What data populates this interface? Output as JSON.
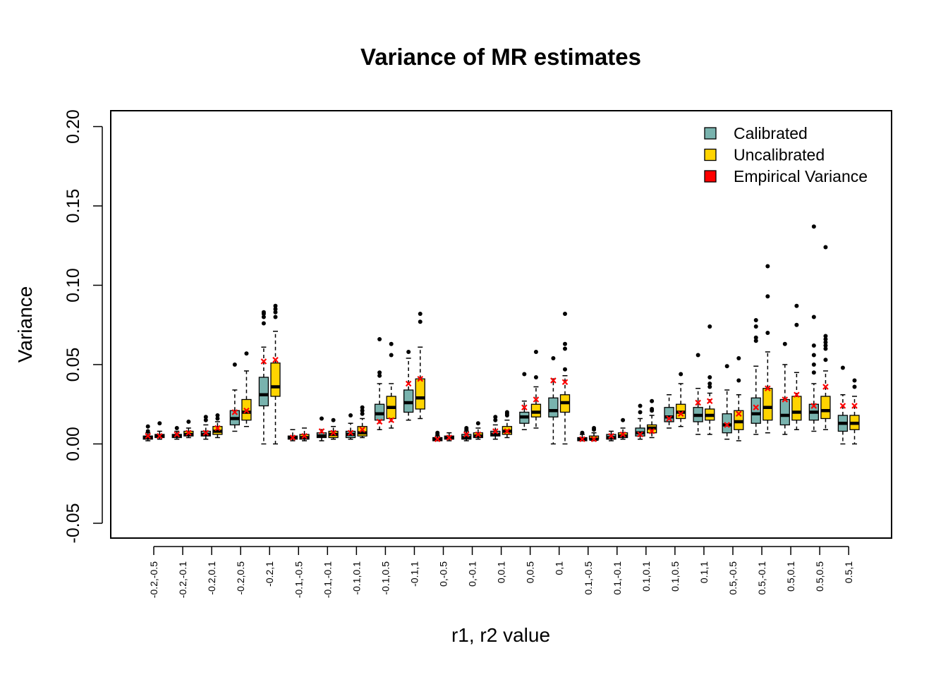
{
  "chart_data": {
    "type": "box",
    "title": "Variance of MR estimates",
    "xlabel": "r1, r2 value",
    "ylabel": "Variance",
    "ylim": [
      -0.06,
      0.21
    ],
    "yticks": [
      -0.05,
      0.0,
      0.05,
      0.1,
      0.15,
      0.2
    ],
    "ytick_labels": [
      "-0.05",
      "0.00",
      "0.05",
      "0.10",
      "0.15",
      "0.20"
    ],
    "grid": false,
    "legend_position": "top-right",
    "legend": [
      {
        "label": "Calibrated",
        "color": "#79B3AE"
      },
      {
        "label": "Uncalibrated",
        "color": "#FFD400"
      },
      {
        "label": "Empirical Variance",
        "color": "#FF0000"
      }
    ],
    "series_colors": {
      "calibrated": "#79B3AE",
      "uncalibrated": "#FFD400",
      "empirical": "#FF0000"
    },
    "categories": [
      {
        "label": "-0.2,-0.5",
        "calibrated": {
          "whislo": 0.002,
          "q1": 0.003,
          "med": 0.004,
          "q3": 0.005,
          "whishi": 0.007,
          "outliers": [
            0.008,
            0.011
          ]
        },
        "uncalibrated": {
          "whislo": 0.003,
          "q1": 0.004,
          "med": 0.005,
          "q3": 0.006,
          "whishi": 0.008,
          "outliers": [
            0.013
          ]
        },
        "empirical": [
          0.005,
          0.005
        ]
      },
      {
        "label": "-0.2,-0.1",
        "calibrated": {
          "whislo": 0.003,
          "q1": 0.004,
          "med": 0.005,
          "q3": 0.006,
          "whishi": 0.008,
          "outliers": [
            0.01
          ]
        },
        "uncalibrated": {
          "whislo": 0.004,
          "q1": 0.005,
          "med": 0.006,
          "q3": 0.008,
          "whishi": 0.01,
          "outliers": [
            0.014
          ]
        },
        "empirical": [
          0.006,
          0.007
        ]
      },
      {
        "label": "-0.2,0.1",
        "calibrated": {
          "whislo": 0.003,
          "q1": 0.005,
          "med": 0.006,
          "q3": 0.008,
          "whishi": 0.012,
          "outliers": [
            0.015,
            0.017
          ]
        },
        "uncalibrated": {
          "whislo": 0.004,
          "q1": 0.006,
          "med": 0.008,
          "q3": 0.011,
          "whishi": 0.014,
          "outliers": [
            0.016,
            0.018
          ]
        },
        "empirical": [
          0.007,
          0.01
        ]
      },
      {
        "label": "-0.2,0.5",
        "calibrated": {
          "whislo": 0.008,
          "q1": 0.012,
          "med": 0.016,
          "q3": 0.021,
          "whishi": 0.034,
          "outliers": [
            0.05
          ]
        },
        "uncalibrated": {
          "whislo": 0.011,
          "q1": 0.015,
          "med": 0.02,
          "q3": 0.028,
          "whishi": 0.046,
          "outliers": [
            0.057
          ]
        },
        "empirical": [
          0.02,
          0.021
        ]
      },
      {
        "label": "-0.2,1",
        "calibrated": {
          "whislo": 0.0,
          "q1": 0.024,
          "med": 0.031,
          "q3": 0.042,
          "whishi": 0.061,
          "outliers": [
            0.076,
            0.08,
            0.082,
            0.083
          ]
        },
        "uncalibrated": {
          "whislo": 0.0,
          "q1": 0.03,
          "med": 0.036,
          "q3": 0.051,
          "whishi": 0.071,
          "outliers": [
            0.08,
            0.083,
            0.085,
            0.087
          ]
        },
        "empirical": [
          0.052,
          0.053
        ]
      },
      {
        "label": "-0.1,-0.5",
        "calibrated": {
          "whislo": 0.002,
          "q1": 0.003,
          "med": 0.004,
          "q3": 0.005,
          "whishi": 0.009,
          "outliers": []
        },
        "uncalibrated": {
          "whislo": 0.002,
          "q1": 0.003,
          "med": 0.004,
          "q3": 0.006,
          "whishi": 0.01,
          "outliers": []
        },
        "empirical": [
          0.004,
          0.005
        ]
      },
      {
        "label": "-0.1,-0.1",
        "calibrated": {
          "whislo": 0.002,
          "q1": 0.004,
          "med": 0.005,
          "q3": 0.007,
          "whishi": 0.009,
          "outliers": [
            0.016
          ]
        },
        "uncalibrated": {
          "whislo": 0.003,
          "q1": 0.004,
          "med": 0.006,
          "q3": 0.008,
          "whishi": 0.011,
          "outliers": [
            0.015
          ]
        },
        "empirical": [
          0.008,
          0.007
        ]
      },
      {
        "label": "-0.1,0.1",
        "calibrated": {
          "whislo": 0.003,
          "q1": 0.004,
          "med": 0.006,
          "q3": 0.008,
          "whishi": 0.013,
          "outliers": [
            0.018
          ]
        },
        "uncalibrated": {
          "whislo": 0.004,
          "q1": 0.005,
          "med": 0.007,
          "q3": 0.011,
          "whishi": 0.016,
          "outliers": [
            0.019,
            0.021,
            0.023
          ]
        },
        "empirical": [
          0.007,
          0.009
        ]
      },
      {
        "label": "-0.1,0.5",
        "calibrated": {
          "whislo": 0.009,
          "q1": 0.015,
          "med": 0.019,
          "q3": 0.025,
          "whishi": 0.038,
          "outliers": [
            0.043,
            0.045,
            0.066
          ]
        },
        "uncalibrated": {
          "whislo": 0.01,
          "q1": 0.016,
          "med": 0.023,
          "q3": 0.03,
          "whishi": 0.038,
          "outliers": [
            0.056,
            0.063
          ]
        },
        "empirical": [
          0.014,
          0.015
        ]
      },
      {
        "label": "-0.1,1",
        "calibrated": {
          "whislo": 0.015,
          "q1": 0.02,
          "med": 0.026,
          "q3": 0.034,
          "whishi": 0.054,
          "outliers": [
            0.058
          ]
        },
        "uncalibrated": {
          "whislo": 0.016,
          "q1": 0.022,
          "med": 0.029,
          "q3": 0.041,
          "whishi": 0.061,
          "outliers": [
            0.077,
            0.082
          ]
        },
        "empirical": [
          0.038,
          0.041
        ]
      },
      {
        "label": "0,-0.5",
        "calibrated": {
          "whislo": 0.002,
          "q1": 0.002,
          "med": 0.003,
          "q3": 0.004,
          "whishi": 0.005,
          "outliers": [
            0.006,
            0.007
          ]
        },
        "uncalibrated": {
          "whislo": 0.002,
          "q1": 0.003,
          "med": 0.004,
          "q3": 0.005,
          "whishi": 0.007,
          "outliers": []
        },
        "empirical": [
          0.003,
          0.004
        ]
      },
      {
        "label": "0,-0.1",
        "calibrated": {
          "whislo": 0.002,
          "q1": 0.003,
          "med": 0.004,
          "q3": 0.006,
          "whishi": 0.008,
          "outliers": [
            0.009,
            0.01
          ]
        },
        "uncalibrated": {
          "whislo": 0.003,
          "q1": 0.004,
          "med": 0.005,
          "q3": 0.007,
          "whishi": 0.01,
          "outliers": [
            0.013
          ]
        },
        "empirical": [
          0.006,
          0.006
        ]
      },
      {
        "label": "0,0.1",
        "calibrated": {
          "whislo": 0.003,
          "q1": 0.005,
          "med": 0.006,
          "q3": 0.008,
          "whishi": 0.012,
          "outliers": [
            0.015,
            0.017
          ]
        },
        "uncalibrated": {
          "whislo": 0.004,
          "q1": 0.006,
          "med": 0.008,
          "q3": 0.011,
          "whishi": 0.015,
          "outliers": [
            0.018,
            0.019,
            0.02
          ]
        },
        "empirical": [
          0.008,
          0.008
        ]
      },
      {
        "label": "0,0.5",
        "calibrated": {
          "whislo": 0.009,
          "q1": 0.013,
          "med": 0.017,
          "q3": 0.02,
          "whishi": 0.027,
          "outliers": [
            0.044
          ]
        },
        "uncalibrated": {
          "whislo": 0.01,
          "q1": 0.017,
          "med": 0.02,
          "q3": 0.025,
          "whishi": 0.036,
          "outliers": [
            0.042,
            0.058
          ]
        },
        "empirical": [
          0.023,
          0.028
        ]
      },
      {
        "label": "0,1",
        "calibrated": {
          "whislo": 0.0,
          "q1": 0.017,
          "med": 0.021,
          "q3": 0.029,
          "whishi": 0.041,
          "outliers": [
            0.054
          ]
        },
        "uncalibrated": {
          "whislo": 0.0,
          "q1": 0.02,
          "med": 0.026,
          "q3": 0.031,
          "whishi": 0.043,
          "outliers": [
            0.047,
            0.06,
            0.063,
            0.082
          ]
        },
        "empirical": [
          0.04,
          0.039
        ]
      },
      {
        "label": "0.1,-0.5",
        "calibrated": {
          "whislo": 0.002,
          "q1": 0.002,
          "med": 0.003,
          "q3": 0.004,
          "whishi": 0.006,
          "outliers": [
            0.007
          ]
        },
        "uncalibrated": {
          "whislo": 0.002,
          "q1": 0.003,
          "med": 0.003,
          "q3": 0.005,
          "whishi": 0.007,
          "outliers": [
            0.009,
            0.01
          ]
        },
        "empirical": [
          0.003,
          0.003
        ]
      },
      {
        "label": "0.1,-0.1",
        "calibrated": {
          "whislo": 0.002,
          "q1": 0.003,
          "med": 0.004,
          "q3": 0.006,
          "whishi": 0.008,
          "outliers": []
        },
        "uncalibrated": {
          "whislo": 0.003,
          "q1": 0.004,
          "med": 0.005,
          "q3": 0.007,
          "whishi": 0.01,
          "outliers": [
            0.015
          ]
        },
        "empirical": [
          0.005,
          0.006
        ]
      },
      {
        "label": "0.1,0.1",
        "calibrated": {
          "whislo": 0.003,
          "q1": 0.005,
          "med": 0.007,
          "q3": 0.01,
          "whishi": 0.016,
          "outliers": [
            0.02,
            0.024
          ]
        },
        "uncalibrated": {
          "whislo": 0.004,
          "q1": 0.007,
          "med": 0.01,
          "q3": 0.012,
          "whishi": 0.018,
          "outliers": [
            0.021,
            0.022,
            0.027
          ]
        },
        "empirical": [
          0.006,
          0.008
        ]
      },
      {
        "label": "0.1,0.5",
        "calibrated": {
          "whislo": 0.01,
          "q1": 0.014,
          "med": 0.017,
          "q3": 0.023,
          "whishi": 0.031,
          "outliers": []
        },
        "uncalibrated": {
          "whislo": 0.011,
          "q1": 0.016,
          "med": 0.02,
          "q3": 0.025,
          "whishi": 0.038,
          "outliers": [
            0.044
          ]
        },
        "empirical": [
          0.016,
          0.019
        ]
      },
      {
        "label": "0.1,1",
        "calibrated": {
          "whislo": 0.006,
          "q1": 0.014,
          "med": 0.018,
          "q3": 0.023,
          "whishi": 0.035,
          "outliers": [
            0.056
          ]
        },
        "uncalibrated": {
          "whislo": 0.006,
          "q1": 0.015,
          "med": 0.018,
          "q3": 0.022,
          "whishi": 0.032,
          "outliers": [
            0.036,
            0.038,
            0.042,
            0.074
          ]
        },
        "empirical": [
          0.026,
          0.027
        ]
      },
      {
        "label": "0.5,-0.5",
        "calibrated": {
          "whislo": 0.003,
          "q1": 0.007,
          "med": 0.012,
          "q3": 0.019,
          "whishi": 0.034,
          "outliers": [
            0.049
          ]
        },
        "uncalibrated": {
          "whislo": 0.002,
          "q1": 0.009,
          "med": 0.014,
          "q3": 0.021,
          "whishi": 0.031,
          "outliers": [
            0.04,
            0.054
          ]
        },
        "empirical": [
          0.012,
          0.019
        ]
      },
      {
        "label": "0.5,-0.1",
        "calibrated": {
          "whislo": 0.006,
          "q1": 0.013,
          "med": 0.019,
          "q3": 0.029,
          "whishi": 0.049,
          "outliers": [
            0.065,
            0.067,
            0.074,
            0.078
          ]
        },
        "uncalibrated": {
          "whislo": 0.007,
          "q1": 0.015,
          "med": 0.023,
          "q3": 0.035,
          "whishi": 0.058,
          "outliers": [
            0.07,
            0.093,
            0.112
          ]
        },
        "empirical": [
          0.023,
          0.035
        ]
      },
      {
        "label": "0.5,0.1",
        "calibrated": {
          "whislo": 0.006,
          "q1": 0.012,
          "med": 0.018,
          "q3": 0.028,
          "whishi": 0.05,
          "outliers": [
            0.063
          ]
        },
        "uncalibrated": {
          "whislo": 0.009,
          "q1": 0.015,
          "med": 0.02,
          "q3": 0.03,
          "whishi": 0.045,
          "outliers": [
            0.075,
            0.087
          ]
        },
        "empirical": [
          0.028,
          0.031
        ]
      },
      {
        "label": "0.5,0.5",
        "calibrated": {
          "whislo": 0.008,
          "q1": 0.015,
          "med": 0.02,
          "q3": 0.025,
          "whishi": 0.038,
          "outliers": [
            0.045,
            0.05,
            0.056,
            0.062,
            0.08,
            0.137
          ]
        },
        "uncalibrated": {
          "whislo": 0.009,
          "q1": 0.016,
          "med": 0.021,
          "q3": 0.03,
          "whishi": 0.046,
          "outliers": [
            0.053,
            0.06,
            0.062,
            0.064,
            0.066,
            0.068,
            0.124
          ]
        },
        "empirical": [
          0.024,
          0.036
        ]
      },
      {
        "label": "0.5,1",
        "calibrated": {
          "whislo": 0.0,
          "q1": 0.008,
          "med": 0.013,
          "q3": 0.018,
          "whishi": 0.031,
          "outliers": [
            0.048
          ]
        },
        "uncalibrated": {
          "whislo": 0.0,
          "q1": 0.009,
          "med": 0.013,
          "q3": 0.018,
          "whishi": 0.03,
          "outliers": [
            0.036,
            0.04
          ]
        },
        "empirical": [
          0.024,
          0.024
        ]
      }
    ]
  }
}
